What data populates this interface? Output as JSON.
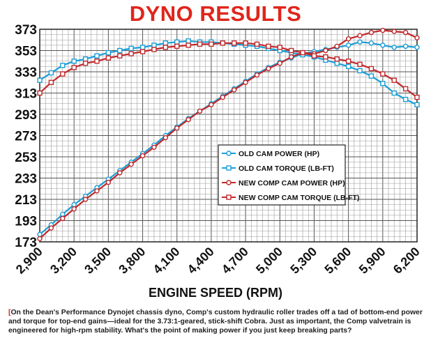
{
  "chart_data": {
    "type": "line",
    "title": "DYNO RESULTS",
    "xlabel": "ENGINE SPEED (RPM)",
    "ylabel": "",
    "xlim": [
      2900,
      6200
    ],
    "ylim": [
      173,
      373
    ],
    "x_ticks": [
      2900,
      3200,
      3500,
      3800,
      4100,
      4400,
      4700,
      5000,
      5300,
      5600,
      5900,
      6200
    ],
    "x_tick_labels": [
      "2,900",
      "3,200",
      "3,500",
      "3,800",
      "4,100",
      "4,400",
      "4,700",
      "5,000",
      "5,300",
      "5,600",
      "5,900",
      "6,200"
    ],
    "y_ticks": [
      173,
      193,
      213,
      233,
      253,
      273,
      293,
      313,
      333,
      353,
      373
    ],
    "y_tick_labels": [
      "173",
      "193",
      "213",
      "233",
      "253",
      "273",
      "293",
      "313",
      "333",
      "353",
      "373"
    ],
    "grid": true,
    "legend_position": "middle-right",
    "x": [
      2900,
      3000,
      3100,
      3200,
      3300,
      3400,
      3500,
      3600,
      3700,
      3800,
      3900,
      4000,
      4100,
      4200,
      4300,
      4400,
      4500,
      4600,
      4700,
      4800,
      4900,
      5000,
      5100,
      5200,
      5300,
      5400,
      5500,
      5600,
      5700,
      5800,
      5900,
      6000,
      6100,
      6200
    ],
    "series": [
      {
        "name": "OLD CAM POWER (HP)",
        "color": "#1a9ed6",
        "marker": "circle",
        "values": [
          180,
          189,
          199,
          208,
          216,
          224,
          232,
          240,
          248,
          256,
          264,
          273,
          281,
          289,
          296,
          303,
          310,
          317,
          324,
          331,
          337,
          342,
          346,
          350,
          352,
          354,
          356,
          358,
          361,
          360,
          358,
          356,
          357,
          356
        ]
      },
      {
        "name": "OLD CAM TORQUE (LB-FT)",
        "color": "#1a9ed6",
        "marker": "square",
        "values": [
          325,
          332,
          339,
          343,
          345,
          348,
          351,
          353,
          355,
          356,
          358,
          360,
          361,
          362,
          361,
          361,
          360,
          359,
          358,
          357,
          355,
          353,
          351,
          349,
          347,
          344,
          341,
          338,
          334,
          329,
          322,
          313,
          307,
          302
        ]
      },
      {
        "name": "NEW COMP CAM POWER (HP)",
        "color": "#c0282b",
        "marker": "circle",
        "values": [
          176,
          186,
          195,
          204,
          213,
          221,
          229,
          238,
          246,
          254,
          262,
          271,
          280,
          288,
          296,
          302,
          309,
          316,
          323,
          330,
          336,
          341,
          347,
          351,
          350,
          353,
          357,
          364,
          367,
          370,
          372,
          371,
          370,
          365
        ]
      },
      {
        "name": "NEW COMP CAM TORQUE (LB-FT)",
        "color": "#c0282b",
        "marker": "square",
        "values": [
          313,
          323,
          331,
          337,
          341,
          343,
          346,
          348,
          350,
          352,
          354,
          356,
          357,
          358,
          359,
          359,
          360,
          360,
          360,
          359,
          357,
          356,
          353,
          351,
          348,
          347,
          345,
          343,
          340,
          336,
          331,
          325,
          317,
          309
        ]
      }
    ]
  },
  "caption": {
    "bracket": "[",
    "text": "On the Dean's Performance Dynojet chassis dyno, Comp's custom hydraulic roller trades off a tad of bottom-end power and torque for top-end gains—ideal for the 3.73:1-geared, stick-shift Cobra. Just as important, the Comp valvetrain is engineered for high-rpm stability. What's the point of making power if you just keep breaking parts?"
  }
}
